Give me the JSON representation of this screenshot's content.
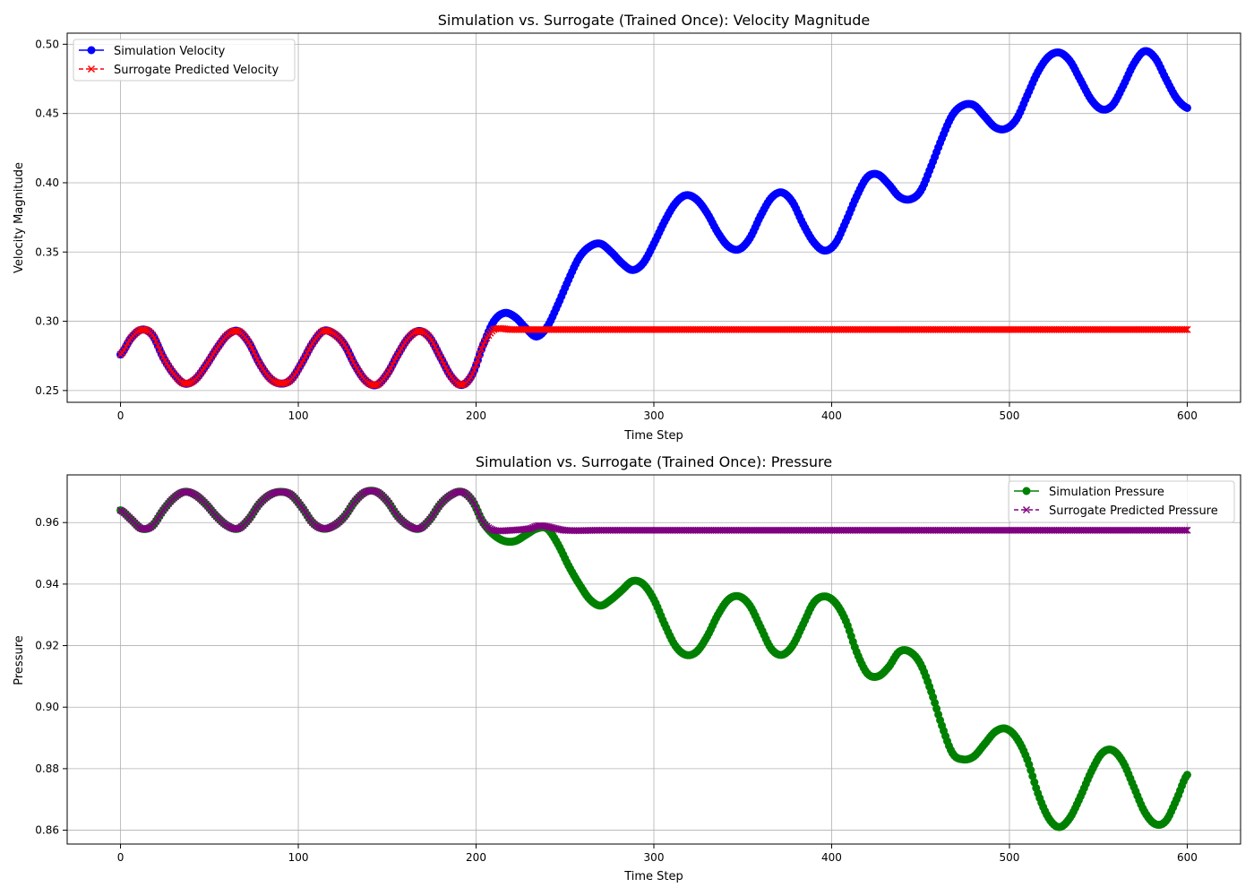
{
  "chart_data": [
    {
      "type": "line",
      "title": "Simulation vs. Surrogate (Trained Once): Velocity Magnitude",
      "xlabel": "Time Step",
      "ylabel": "Velocity Magnitude",
      "xlim": [
        -30,
        630
      ],
      "ylim": [
        0.2415,
        0.508
      ],
      "xticks": [
        0,
        100,
        200,
        300,
        400,
        500,
        600
      ],
      "yticks": [
        0.25,
        0.3,
        0.35,
        0.4,
        0.45,
        0.5
      ],
      "ytick_labels": [
        "0.25",
        "0.30",
        "0.35",
        "0.40",
        "0.45",
        "0.50"
      ],
      "grid": true,
      "legend_position": "upper-left",
      "series": [
        {
          "name": "Simulation Velocity",
          "color": "#0000ff",
          "marker": "circle",
          "linestyle": "solid",
          "x": [
            0,
            6,
            12,
            18,
            24,
            30,
            36,
            42,
            48,
            54,
            60,
            66,
            72,
            78,
            84,
            90,
            96,
            102,
            108,
            114,
            120,
            126,
            132,
            138,
            144,
            150,
            156,
            162,
            168,
            174,
            180,
            186,
            192,
            198,
            204,
            210,
            216,
            222,
            228,
            234,
            240,
            246,
            252,
            258,
            264,
            270,
            276,
            282,
            288,
            294,
            300,
            306,
            312,
            318,
            324,
            330,
            336,
            342,
            348,
            354,
            360,
            366,
            372,
            378,
            384,
            390,
            396,
            402,
            408,
            414,
            420,
            426,
            432,
            438,
            444,
            450,
            456,
            462,
            468,
            474,
            480,
            486,
            492,
            498,
            504,
            510,
            516,
            522,
            528,
            534,
            540,
            546,
            552,
            558,
            564,
            570,
            576,
            582,
            588,
            594,
            600
          ],
          "y": [
            0.276,
            0.288,
            0.294,
            0.29,
            0.274,
            0.262,
            0.255,
            0.258,
            0.268,
            0.28,
            0.29,
            0.293,
            0.285,
            0.27,
            0.259,
            0.255,
            0.258,
            0.27,
            0.284,
            0.293,
            0.291,
            0.283,
            0.268,
            0.257,
            0.254,
            0.262,
            0.276,
            0.288,
            0.293,
            0.288,
            0.274,
            0.26,
            0.254,
            0.262,
            0.283,
            0.3,
            0.306,
            0.303,
            0.295,
            0.289,
            0.296,
            0.312,
            0.33,
            0.346,
            0.354,
            0.356,
            0.35,
            0.342,
            0.337,
            0.342,
            0.356,
            0.372,
            0.385,
            0.391,
            0.388,
            0.378,
            0.364,
            0.354,
            0.352,
            0.36,
            0.376,
            0.389,
            0.393,
            0.386,
            0.37,
            0.357,
            0.351,
            0.356,
            0.372,
            0.39,
            0.404,
            0.406,
            0.399,
            0.39,
            0.388,
            0.394,
            0.412,
            0.432,
            0.449,
            0.456,
            0.456,
            0.448,
            0.44,
            0.439,
            0.446,
            0.463,
            0.48,
            0.491,
            0.494,
            0.488,
            0.474,
            0.46,
            0.453,
            0.456,
            0.47,
            0.486,
            0.495,
            0.49,
            0.475,
            0.461,
            0.454
          ]
        },
        {
          "name": "Surrogate Predicted Velocity",
          "color": "#ff0000",
          "marker": "x",
          "linestyle": "dashed",
          "x": [
            0,
            6,
            12,
            18,
            24,
            30,
            36,
            42,
            48,
            54,
            60,
            66,
            72,
            78,
            84,
            90,
            96,
            102,
            108,
            114,
            120,
            126,
            132,
            138,
            144,
            150,
            156,
            162,
            168,
            174,
            180,
            186,
            192,
            198,
            204,
            210,
            220,
            240,
            260,
            280,
            300,
            320,
            340,
            360,
            380,
            400,
            420,
            440,
            460,
            480,
            500,
            520,
            540,
            560,
            580,
            600
          ],
          "y": [
            0.276,
            0.288,
            0.294,
            0.29,
            0.274,
            0.262,
            0.255,
            0.258,
            0.268,
            0.28,
            0.29,
            0.293,
            0.285,
            0.27,
            0.259,
            0.255,
            0.258,
            0.27,
            0.284,
            0.293,
            0.291,
            0.283,
            0.268,
            0.257,
            0.254,
            0.262,
            0.276,
            0.288,
            0.293,
            0.288,
            0.274,
            0.26,
            0.254,
            0.262,
            0.283,
            0.294,
            0.294,
            0.294,
            0.294,
            0.294,
            0.294,
            0.294,
            0.294,
            0.294,
            0.294,
            0.294,
            0.294,
            0.294,
            0.294,
            0.294,
            0.294,
            0.294,
            0.294,
            0.294,
            0.294,
            0.294
          ]
        }
      ]
    },
    {
      "type": "line",
      "title": "Simulation vs. Surrogate (Trained Once): Pressure",
      "xlabel": "Time Step",
      "ylabel": "Pressure",
      "xlim": [
        -30,
        630
      ],
      "ylim": [
        0.8555,
        0.9755
      ],
      "xticks": [
        0,
        100,
        200,
        300,
        400,
        500,
        600
      ],
      "yticks": [
        0.86,
        0.88,
        0.9,
        0.92,
        0.94,
        0.96
      ],
      "ytick_labels": [
        "0.86",
        "0.88",
        "0.90",
        "0.92",
        "0.94",
        "0.96"
      ],
      "grid": true,
      "legend_position": "upper-right",
      "series": [
        {
          "name": "Simulation Pressure",
          "color": "#008000",
          "marker": "circle",
          "linestyle": "solid",
          "x": [
            0,
            6,
            12,
            18,
            24,
            30,
            36,
            42,
            48,
            54,
            60,
            66,
            72,
            78,
            84,
            90,
            96,
            102,
            108,
            114,
            120,
            126,
            132,
            138,
            144,
            150,
            156,
            162,
            168,
            174,
            180,
            186,
            192,
            198,
            204,
            210,
            216,
            222,
            228,
            234,
            240,
            246,
            252,
            258,
            264,
            270,
            276,
            282,
            288,
            294,
            300,
            306,
            312,
            318,
            324,
            330,
            336,
            342,
            348,
            354,
            360,
            366,
            372,
            378,
            384,
            390,
            396,
            402,
            408,
            414,
            420,
            426,
            432,
            438,
            444,
            450,
            456,
            462,
            468,
            474,
            480,
            486,
            492,
            498,
            504,
            510,
            516,
            522,
            528,
            534,
            540,
            546,
            552,
            558,
            564,
            570,
            576,
            582,
            588,
            594,
            600
          ],
          "y": [
            0.964,
            0.961,
            0.958,
            0.959,
            0.964,
            0.968,
            0.97,
            0.969,
            0.966,
            0.962,
            0.959,
            0.958,
            0.961,
            0.966,
            0.969,
            0.97,
            0.969,
            0.965,
            0.96,
            0.958,
            0.959,
            0.962,
            0.967,
            0.97,
            0.97,
            0.967,
            0.962,
            0.959,
            0.958,
            0.961,
            0.966,
            0.969,
            0.97,
            0.967,
            0.96,
            0.956,
            0.954,
            0.954,
            0.956,
            0.958,
            0.958,
            0.953,
            0.946,
            0.94,
            0.935,
            0.933,
            0.935,
            0.938,
            0.941,
            0.94,
            0.935,
            0.927,
            0.92,
            0.917,
            0.918,
            0.923,
            0.93,
            0.935,
            0.936,
            0.933,
            0.926,
            0.919,
            0.917,
            0.92,
            0.927,
            0.934,
            0.936,
            0.934,
            0.928,
            0.918,
            0.911,
            0.91,
            0.913,
            0.918,
            0.918,
            0.914,
            0.905,
            0.894,
            0.885,
            0.883,
            0.884,
            0.888,
            0.892,
            0.893,
            0.89,
            0.883,
            0.872,
            0.864,
            0.861,
            0.864,
            0.871,
            0.879,
            0.885,
            0.886,
            0.882,
            0.874,
            0.866,
            0.862,
            0.863,
            0.87,
            0.878
          ]
        },
        {
          "name": "Surrogate Predicted Pressure",
          "color": "#800080",
          "marker": "x",
          "linestyle": "dashed",
          "x": [
            0,
            6,
            12,
            18,
            24,
            30,
            36,
            42,
            48,
            54,
            60,
            66,
            72,
            78,
            84,
            90,
            96,
            102,
            108,
            114,
            120,
            126,
            132,
            138,
            144,
            150,
            156,
            162,
            168,
            174,
            180,
            186,
            192,
            198,
            204,
            210,
            220,
            230,
            236,
            250,
            270,
            290,
            310,
            330,
            350,
            370,
            390,
            410,
            430,
            450,
            470,
            490,
            510,
            530,
            550,
            570,
            590,
            600
          ],
          "y": [
            0.964,
            0.961,
            0.958,
            0.959,
            0.964,
            0.968,
            0.97,
            0.969,
            0.966,
            0.962,
            0.959,
            0.958,
            0.961,
            0.966,
            0.969,
            0.97,
            0.969,
            0.965,
            0.96,
            0.958,
            0.959,
            0.962,
            0.967,
            0.97,
            0.97,
            0.967,
            0.962,
            0.959,
            0.958,
            0.961,
            0.966,
            0.969,
            0.97,
            0.967,
            0.96,
            0.9575,
            0.9575,
            0.958,
            0.959,
            0.9575,
            0.9575,
            0.9575,
            0.9575,
            0.9575,
            0.9575,
            0.9575,
            0.9575,
            0.9575,
            0.9575,
            0.9575,
            0.9575,
            0.9575,
            0.9575,
            0.9575,
            0.9575,
            0.9575,
            0.9575,
            0.9575
          ]
        }
      ]
    }
  ]
}
